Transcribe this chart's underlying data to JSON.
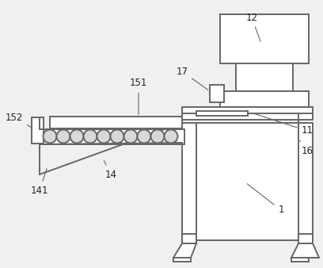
{
  "bg_color": "#f0f0f0",
  "line_color": "#666666",
  "line_width": 1.4,
  "label_fontsize": 8.5,
  "label_color": "#222222"
}
